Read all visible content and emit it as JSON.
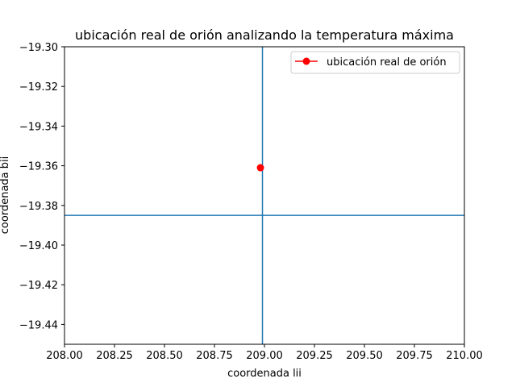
{
  "chart_data": {
    "type": "scatter",
    "title": "ubicación real de orión analizando la temperatura máxima",
    "xlabel": "coordenada lii",
    "ylabel": "coordenada bii",
    "xlim": [
      208.0,
      210.0
    ],
    "ylim": [
      -19.45,
      -19.3
    ],
    "xticks": [
      208.0,
      208.25,
      208.5,
      208.75,
      209.0,
      209.25,
      209.5,
      209.75,
      210.0
    ],
    "xtick_labels": [
      "208.00",
      "208.25",
      "208.50",
      "208.75",
      "209.00",
      "209.25",
      "209.50",
      "209.75",
      "210.00"
    ],
    "yticks": [
      -19.3,
      -19.32,
      -19.34,
      -19.36,
      -19.38,
      -19.4,
      -19.42,
      -19.44
    ],
    "ytick_labels": [
      "−19.30",
      "−19.32",
      "−19.34",
      "−19.36",
      "−19.38",
      "−19.40",
      "−19.42",
      "−19.44"
    ],
    "grid": false,
    "legend_position": "upper right",
    "series": [
      {
        "name": "ubicación real de orión",
        "color": "#ff0000",
        "marker": "circle",
        "x": [
          208.98
        ],
        "y": [
          -19.361
        ]
      }
    ],
    "reference_lines": {
      "color": "#1f77b4",
      "vertical_x": 208.99,
      "horizontal_y": -19.385
    }
  }
}
